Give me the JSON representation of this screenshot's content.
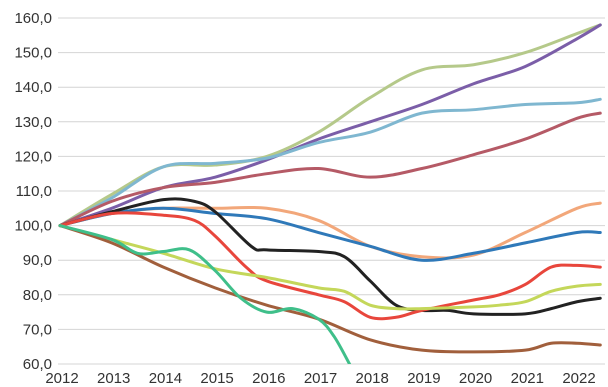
{
  "chart_data": {
    "type": "line",
    "title": "",
    "xlabel": "",
    "ylabel": "",
    "ylim": [
      60,
      160
    ],
    "xlim": [
      2012,
      2022.45
    ],
    "grid": true,
    "legend": "none",
    "y_ticks": [
      60,
      70,
      80,
      90,
      100,
      110,
      120,
      130,
      140,
      150,
      160
    ],
    "y_tick_labels": [
      "60,0",
      "70,0",
      "80,0",
      "90,0",
      "100,0",
      "110,0",
      "120,0",
      "130,0",
      "140,0",
      "150,0",
      "160,0"
    ],
    "x_ticks": [
      2012,
      2013,
      2014,
      2015,
      2016,
      2017,
      2018,
      2019,
      2020,
      2021,
      2022
    ],
    "x_tick_labels": [
      "2012",
      "2013",
      "2014",
      "2015",
      "2016",
      "2017",
      "2018",
      "2019",
      "2020",
      "2021",
      "2022"
    ],
    "series": [
      {
        "color": "#b5c98a",
        "points": [
          [
            2012,
            100
          ],
          [
            2013,
            109
          ],
          [
            2014,
            117
          ],
          [
            2015,
            117.5
          ],
          [
            2016,
            120
          ],
          [
            2017,
            127
          ],
          [
            2018,
            137
          ],
          [
            2019,
            145
          ],
          [
            2020,
            146.5
          ],
          [
            2021,
            150
          ],
          [
            2022,
            155.5
          ],
          [
            2022.45,
            158
          ]
        ]
      },
      {
        "color": "#7b5ea8",
        "points": [
          [
            2012,
            100
          ],
          [
            2013,
            105
          ],
          [
            2014,
            111
          ],
          [
            2015,
            114
          ],
          [
            2016,
            119
          ],
          [
            2017,
            125
          ],
          [
            2018,
            130
          ],
          [
            2019,
            135
          ],
          [
            2020,
            141
          ],
          [
            2021,
            146
          ],
          [
            2022,
            154
          ],
          [
            2022.45,
            158
          ]
        ]
      },
      {
        "color": "#7fb7d0",
        "points": [
          [
            2012,
            100
          ],
          [
            2013,
            108
          ],
          [
            2014,
            117
          ],
          [
            2015,
            118
          ],
          [
            2016,
            119.5
          ],
          [
            2017,
            124
          ],
          [
            2018,
            127
          ],
          [
            2019,
            132.5
          ],
          [
            2020,
            133.5
          ],
          [
            2021,
            135
          ],
          [
            2022,
            135.5
          ],
          [
            2022.45,
            136.5
          ]
        ]
      },
      {
        "color": "#b55a66",
        "points": [
          [
            2012,
            100
          ],
          [
            2013,
            107
          ],
          [
            2014,
            111
          ],
          [
            2015,
            112.5
          ],
          [
            2016,
            115
          ],
          [
            2017,
            116.5
          ],
          [
            2018,
            114
          ],
          [
            2019,
            116.5
          ],
          [
            2020,
            120.5
          ],
          [
            2021,
            125
          ],
          [
            2022,
            131
          ],
          [
            2022.45,
            132.5
          ]
        ]
      },
      {
        "color": "#f2a77a",
        "points": [
          [
            2012,
            100
          ],
          [
            2013,
            103.5
          ],
          [
            2014,
            105
          ],
          [
            2015,
            105
          ],
          [
            2016,
            105
          ],
          [
            2017,
            101.5
          ],
          [
            2018,
            94
          ],
          [
            2019,
            91
          ],
          [
            2020,
            91.5
          ],
          [
            2021,
            98
          ],
          [
            2022,
            105
          ],
          [
            2022.45,
            106.5
          ]
        ]
      },
      {
        "color": "#2f79b9",
        "points": [
          [
            2012,
            100
          ],
          [
            2013,
            103.5
          ],
          [
            2014,
            105
          ],
          [
            2015,
            103.5
          ],
          [
            2016,
            102
          ],
          [
            2017,
            98
          ],
          [
            2018,
            94
          ],
          [
            2019,
            90
          ],
          [
            2020,
            92
          ],
          [
            2021,
            95
          ],
          [
            2022,
            98
          ],
          [
            2022.45,
            98
          ]
        ]
      },
      {
        "color": "#222222",
        "points": [
          [
            2012,
            100
          ],
          [
            2013,
            104
          ],
          [
            2014,
            107.5
          ],
          [
            2014.6,
            107
          ],
          [
            2015,
            104
          ],
          [
            2015.7,
            94
          ],
          [
            2016,
            93
          ],
          [
            2017,
            92.5
          ],
          [
            2017.5,
            91
          ],
          [
            2018,
            84
          ],
          [
            2018.5,
            77
          ],
          [
            2019,
            75.5
          ],
          [
            2019.5,
            75.5
          ],
          [
            2020,
            74.5
          ],
          [
            2021,
            74.5
          ],
          [
            2021.5,
            76
          ],
          [
            2022,
            78
          ],
          [
            2022.45,
            79
          ]
        ]
      },
      {
        "color": "#e8463c",
        "points": [
          [
            2012,
            100
          ],
          [
            2013,
            103.5
          ],
          [
            2014,
            103
          ],
          [
            2014.6,
            101.5
          ],
          [
            2015,
            97
          ],
          [
            2015.6,
            88
          ],
          [
            2016,
            84
          ],
          [
            2017,
            80
          ],
          [
            2017.5,
            78
          ],
          [
            2018,
            73.5
          ],
          [
            2018.5,
            73.5
          ],
          [
            2019,
            75.5
          ],
          [
            2020,
            78.5
          ],
          [
            2020.5,
            80
          ],
          [
            2021,
            83
          ],
          [
            2021.5,
            88
          ],
          [
            2022,
            88.5
          ],
          [
            2022.45,
            88
          ]
        ]
      },
      {
        "color": "#c4d75a",
        "points": [
          [
            2012,
            100
          ],
          [
            2013,
            96
          ],
          [
            2014,
            92
          ],
          [
            2015,
            87.5
          ],
          [
            2016,
            85
          ],
          [
            2017,
            82
          ],
          [
            2017.5,
            81
          ],
          [
            2018,
            77
          ],
          [
            2018.5,
            76
          ],
          [
            2019,
            76
          ],
          [
            2020,
            76.5
          ],
          [
            2020.5,
            77
          ],
          [
            2021,
            78
          ],
          [
            2021.5,
            81
          ],
          [
            2022,
            82.5
          ],
          [
            2022.45,
            83
          ]
        ]
      },
      {
        "color": "#a15f3c",
        "points": [
          [
            2012,
            100
          ],
          [
            2013,
            95
          ],
          [
            2014,
            88
          ],
          [
            2015,
            82
          ],
          [
            2016,
            77
          ],
          [
            2017,
            73
          ],
          [
            2018,
            67
          ],
          [
            2019,
            64
          ],
          [
            2020,
            63.5
          ],
          [
            2021,
            64
          ],
          [
            2021.5,
            66
          ],
          [
            2022,
            66
          ],
          [
            2022.45,
            65.5
          ]
        ]
      },
      {
        "color": "#3fbf8a",
        "points": [
          [
            2012,
            100
          ],
          [
            2013,
            96
          ],
          [
            2013.5,
            92
          ],
          [
            2014,
            92.5
          ],
          [
            2014.5,
            93
          ],
          [
            2015,
            87
          ],
          [
            2015.5,
            79
          ],
          [
            2016,
            75
          ],
          [
            2016.5,
            76
          ],
          [
            2017,
            73
          ],
          [
            2017.3,
            68
          ],
          [
            2017.6,
            60
          ]
        ]
      }
    ]
  }
}
